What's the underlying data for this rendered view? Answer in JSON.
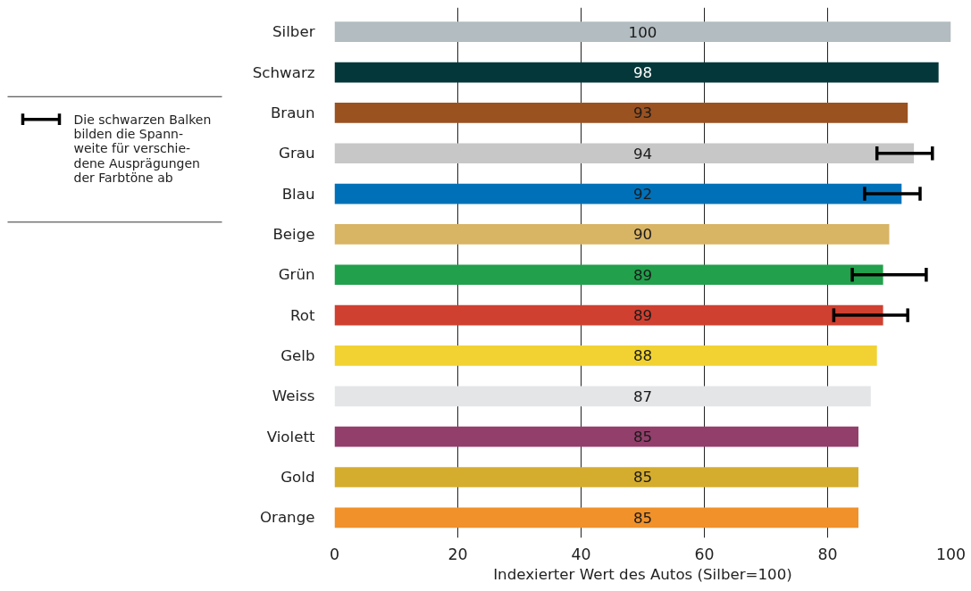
{
  "chart_data": {
    "type": "bar",
    "orientation": "horizontal",
    "xlabel": "Indexierter Wert des Autos (Silber=100)",
    "categories": [
      "Silber",
      "Schwarz",
      "Braun",
      "Grau",
      "Blau",
      "Beige",
      "Grün",
      "Rot",
      "Gelb",
      "Weiss",
      "Violett",
      "Gold",
      "Orange"
    ],
    "values": [
      100,
      98,
      93,
      94,
      92,
      90,
      89,
      89,
      88,
      87,
      85,
      85,
      85
    ],
    "colors": [
      "#b3bcc0",
      "#04373a",
      "#9a5220",
      "#c8c7c7",
      "#0071b9",
      "#d8b465",
      "#22a04b",
      "#cf4030",
      "#f1d232",
      "#e3e5e7",
      "#923f6b",
      "#d5ad2e",
      "#f0912a"
    ],
    "errors": [
      null,
      null,
      null,
      [
        88,
        97
      ],
      [
        86,
        95
      ],
      null,
      [
        84,
        96
      ],
      [
        81,
        93
      ],
      null,
      null,
      null,
      null,
      null
    ],
    "data_labels": true,
    "xlim": [
      0,
      100
    ],
    "xticks": [
      0,
      20,
      40,
      60,
      80,
      100
    ],
    "grid": "x",
    "annotations": [
      "Die schwarzen Balken\nbilden die Spann-\nweite für verschie-\ndene Ausprägungen\nder Farbtöne ab"
    ]
  }
}
